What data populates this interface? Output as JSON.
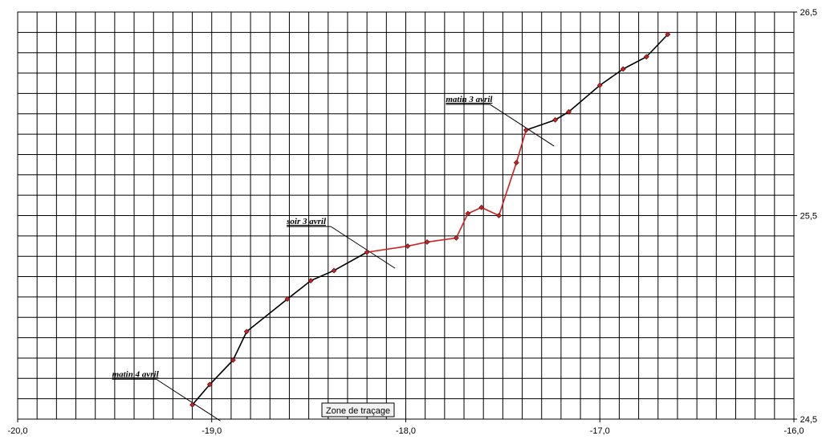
{
  "chart_data": {
    "type": "line",
    "xlim": [
      -20.0,
      -16.0
    ],
    "ylim": [
      24.5,
      26.5
    ],
    "x_tick_labels": [
      "-20,0",
      "-19,0",
      "-18,0",
      "-17,0",
      "-16,0"
    ],
    "y_tick_labels": [
      "24,5",
      "25,5",
      "26,5"
    ],
    "grid": true,
    "series": [
      {
        "color": "#000000",
        "x": [
          -16.65,
          -16.76,
          -16.88,
          -17.0,
          -17.16,
          -17.23,
          -17.38
        ],
        "y": [
          26.39,
          26.28,
          26.22,
          26.14,
          26.01,
          25.97,
          25.92
        ]
      },
      {
        "color": "#cc2222",
        "x": [
          -17.38,
          -17.43,
          -17.52,
          -17.61,
          -17.68,
          -17.74,
          -17.89,
          -17.99,
          -18.2
        ],
        "y": [
          25.92,
          25.76,
          25.5,
          25.54,
          25.51,
          25.39,
          25.37,
          25.35,
          25.32
        ]
      },
      {
        "color": "#000000",
        "x": [
          -18.2,
          -18.37,
          -18.49,
          -18.61,
          -18.82,
          -18.89,
          -19.01,
          -19.1
        ],
        "y": [
          25.32,
          25.23,
          25.18,
          25.09,
          24.93,
          24.79,
          24.67,
          24.57
        ]
      }
    ],
    "marker_color": "#cc2222",
    "annotations": [
      {
        "text": "matin 3 avril",
        "x": -17.38,
        "y": 25.92
      },
      {
        "text": "soir 3 avril",
        "x": -18.2,
        "y": 25.32
      },
      {
        "text": "matin 4 avril",
        "x": -19.1,
        "y": 24.57
      }
    ],
    "tooltip": "Zone de traçage"
  }
}
